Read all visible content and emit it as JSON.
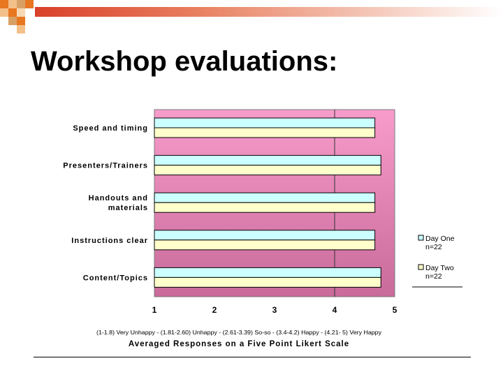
{
  "slide": {
    "title": "Workshop evaluations:"
  },
  "colors": {
    "plot_bg_top": "#f89ccc",
    "plot_bg_bottom": "#c86a9a",
    "bar_day_one": "#ccffff",
    "bar_day_two": "#ffffcc",
    "deco_orange": "#e87722",
    "deco_tan": "#d9a066"
  },
  "chart_data": {
    "type": "bar",
    "orientation": "horizontal",
    "categories": [
      "Speed and timing",
      "Presenters/Trainers",
      "Handouts and materials",
      "Instructions clear",
      "Content/Topics"
    ],
    "category_lines": [
      [
        "Speed and timing"
      ],
      [
        "Presenters/Trainers"
      ],
      [
        "Handouts and",
        "materials"
      ],
      [
        "Instructions clear"
      ],
      [
        "Content/Topics"
      ]
    ],
    "series": [
      {
        "name": "Day One n=22",
        "legend_lines": [
          "Day One",
          "n=22"
        ],
        "values": [
          4.67,
          4.77,
          4.67,
          4.67,
          4.77
        ]
      },
      {
        "name": "Day Two n=22",
        "legend_lines": [
          "Day Two",
          "n=22"
        ],
        "values": [
          4.67,
          4.77,
          4.67,
          4.67,
          4.77
        ]
      }
    ],
    "xlim": [
      1,
      5
    ],
    "xticks": [
      "1",
      "2",
      "3",
      "4",
      "5"
    ],
    "x_gridlines": [
      4
    ],
    "scale_note": "(1-1.8) Very Unhappy - (1.81-2.60) Unhappy - (2.61-3.39) So-so - (3.4-4.2) Happy - (4.21- 5) Very Happy",
    "xlabel": "Averaged Responses on a Five Point Likert Scale",
    "legend_position": "right"
  }
}
